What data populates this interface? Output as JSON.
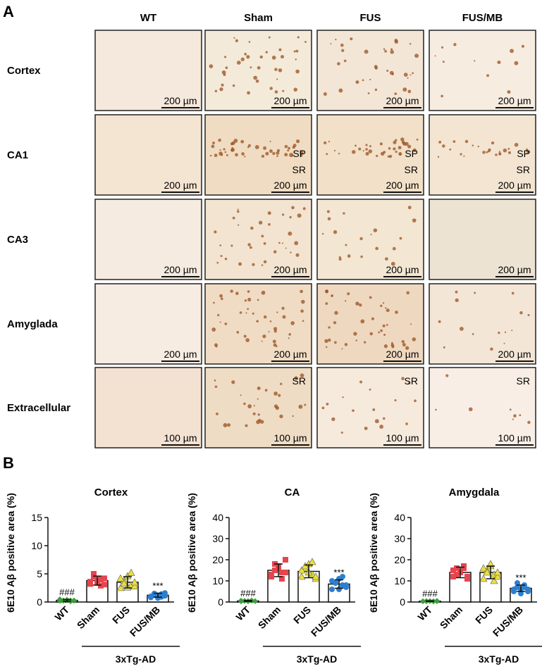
{
  "panel_a": {
    "label": "A",
    "columns": [
      "WT",
      "Sham",
      "FUS",
      "FUS/MB"
    ],
    "rows": [
      {
        "name": "Cortex",
        "cells": [
          {
            "scale": "200 µm"
          },
          {
            "scale": "200 µm"
          },
          {
            "scale": "200 µm"
          },
          {
            "scale": "200 µm"
          }
        ]
      },
      {
        "name": "CA1",
        "cells": [
          {
            "scale": "200 µm"
          },
          {
            "scale": "200 µm",
            "labels": [
              "SP",
              "SR"
            ]
          },
          {
            "scale": "200 µm",
            "labels": [
              "SP",
              "SR"
            ]
          },
          {
            "scale": "200 µm",
            "labels": [
              "SP",
              "SR"
            ]
          }
        ]
      },
      {
        "name": "CA3",
        "cells": [
          {
            "scale": "200 µm"
          },
          {
            "scale": "200 µm"
          },
          {
            "scale": "200 µm"
          },
          {
            "scale": "200 µm"
          }
        ]
      },
      {
        "name": "Amyglada",
        "cells": [
          {
            "scale": "200 µm"
          },
          {
            "scale": "200 µm"
          },
          {
            "scale": "200 µm"
          },
          {
            "scale": "200 µm"
          }
        ]
      },
      {
        "name": "Extracellular",
        "cells": [
          {
            "scale": "100 µm"
          },
          {
            "scale": "100 µm",
            "labels": [
              "SR"
            ]
          },
          {
            "scale": "100 µm",
            "labels": [
              "SR"
            ]
          },
          {
            "scale": "100 µm",
            "labels": [
              "SR"
            ]
          }
        ]
      }
    ]
  },
  "panel_b": {
    "label": "B"
  },
  "chart_data": [
    {
      "type": "bar",
      "title": "Cortex",
      "ylabel": "6E10 Aβ positive area (%)",
      "categories": [
        "WT",
        "Sham",
        "FUS",
        "FUS/MB"
      ],
      "values": [
        0.3,
        3.8,
        3.5,
        1.2
      ],
      "errors": [
        0.15,
        0.8,
        1.0,
        0.35
      ],
      "points": [
        [
          0.2,
          0.3,
          0.4,
          0.1,
          0.3,
          0.5,
          0.2,
          0.4,
          0.3,
          0.2
        ],
        [
          3.2,
          4.5,
          3.8,
          2.9,
          4.2,
          3.6,
          5.0,
          3.4,
          4.0,
          3.1
        ],
        [
          2.5,
          3.8,
          4.6,
          3.0,
          2.8,
          4.2,
          3.3,
          2.6,
          5.2,
          3.5
        ],
        [
          0.8,
          1.5,
          1.2,
          0.9,
          1.6,
          1.0,
          1.3,
          0.7,
          1.4,
          1.1
        ]
      ],
      "annotations": [
        "###",
        null,
        null,
        "***"
      ],
      "group_label": "3xTg-AD",
      "colors": [
        "#3ca03c",
        "#e6454e",
        "#e8e040",
        "#2c7fd0"
      ],
      "markers": [
        "diamond",
        "square",
        "triangle",
        "circle"
      ],
      "ylim": [
        0,
        15
      ],
      "yticks": [
        0,
        5,
        10,
        15
      ]
    },
    {
      "type": "bar",
      "title": "CA",
      "ylabel": "6E10 Aβ positive area (%)",
      "categories": [
        "WT",
        "Sham",
        "FUS",
        "FUS/MB"
      ],
      "values": [
        0.5,
        15,
        14.5,
        8.5
      ],
      "errors": [
        0.2,
        3,
        3,
        2
      ],
      "points": [
        [
          0.3,
          0.6,
          0.5,
          0.8,
          0.4,
          0.7,
          0.5,
          0.3,
          0.6,
          0.4
        ],
        [
          12,
          18,
          16,
          14,
          20,
          13,
          15,
          17,
          11,
          14
        ],
        [
          12,
          16,
          18,
          13,
          11,
          15,
          17,
          14,
          19,
          12
        ],
        [
          6,
          9,
          11,
          8,
          7,
          10,
          9,
          6,
          12,
          8
        ]
      ],
      "annotations": [
        "###",
        null,
        null,
        "***"
      ],
      "group_label": "3xTg-AD",
      "colors": [
        "#3ca03c",
        "#e6454e",
        "#e8e040",
        "#2c7fd0"
      ],
      "markers": [
        "diamond",
        "square",
        "triangle",
        "circle"
      ],
      "ylim": [
        0,
        40
      ],
      "yticks": [
        0,
        10,
        20,
        30,
        40
      ]
    },
    {
      "type": "bar",
      "title": "Amygdala",
      "ylabel": "6E10 Aβ positive area (%)",
      "categories": [
        "WT",
        "Sham",
        "FUS",
        "FUS/MB"
      ],
      "values": [
        0.4,
        14,
        14,
        6.5
      ],
      "errors": [
        0.15,
        2.5,
        3,
        1.5
      ],
      "points": [
        [
          0.3,
          0.5,
          0.4,
          0.2,
          0.6,
          0.4,
          0.3,
          0.5,
          0.4,
          0.3
        ],
        [
          12,
          16,
          14,
          17,
          11,
          15,
          13,
          14,
          16,
          12
        ],
        [
          11,
          15,
          17,
          13,
          12,
          16,
          14,
          18,
          10,
          14
        ],
        [
          5,
          7,
          6,
          8,
          5,
          6,
          9,
          4,
          7,
          6
        ]
      ],
      "annotations": [
        "###",
        null,
        null,
        "***"
      ],
      "group_label": "3xTg-AD",
      "colors": [
        "#3ca03c",
        "#e6454e",
        "#e8e040",
        "#2c7fd0"
      ],
      "markers": [
        "diamond",
        "square",
        "triangle",
        "circle"
      ],
      "ylim": [
        0,
        40
      ],
      "yticks": [
        0,
        10,
        20,
        30,
        40
      ]
    }
  ]
}
